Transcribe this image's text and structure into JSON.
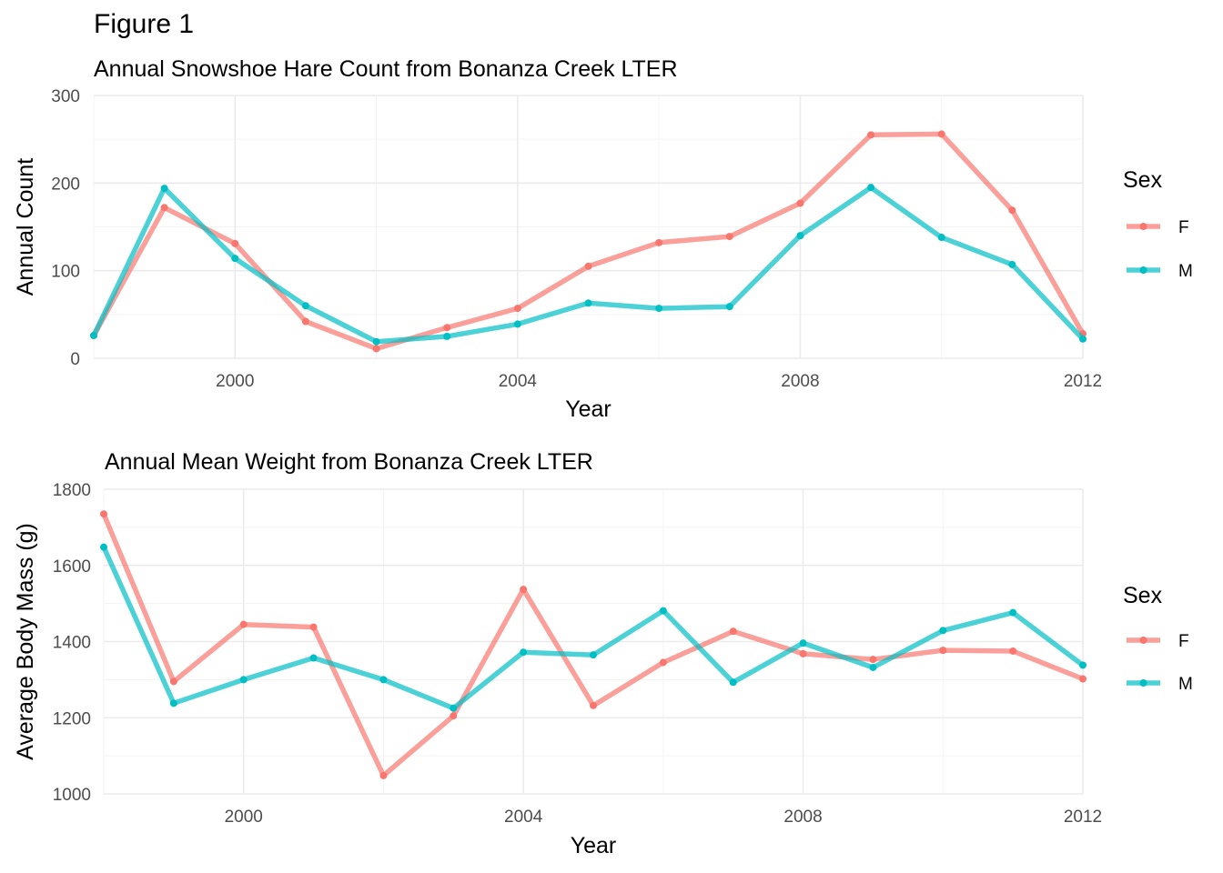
{
  "figure_title": "Figure 1",
  "colors": {
    "F": "#F8766D",
    "M": "#00BFC4"
  },
  "chart_data": [
    {
      "type": "line",
      "title": "Annual Snowshoe Hare Count from Bonanza Creek LTER",
      "xlabel": "Year",
      "ylabel": "Annual Count",
      "xlim": [
        1998,
        2012
      ],
      "ylim": [
        0,
        300
      ],
      "x_ticks": [
        2000,
        2004,
        2008,
        2012
      ],
      "y_ticks": [
        0,
        100,
        200,
        300
      ],
      "grid": true,
      "legend": {
        "title": "Sex",
        "position": "right",
        "entries": [
          "F",
          "M"
        ]
      },
      "x": [
        1998,
        1999,
        2000,
        2001,
        2002,
        2003,
        2004,
        2005,
        2006,
        2007,
        2008,
        2009,
        2010,
        2011,
        2012
      ],
      "series": [
        {
          "name": "F",
          "values": [
            26,
            172,
            131,
            42,
            11,
            35,
            57,
            105,
            132,
            139,
            177,
            255,
            256,
            169,
            28
          ]
        },
        {
          "name": "M",
          "values": [
            26,
            194,
            114,
            60,
            19,
            25,
            39,
            63,
            57,
            59,
            140,
            195,
            138,
            107,
            22
          ]
        }
      ]
    },
    {
      "type": "line",
      "title": "Annual Mean Weight from Bonanza Creek LTER",
      "xlabel": "Year",
      "ylabel": "Average Body Mass (g)",
      "xlim": [
        1998,
        2012
      ],
      "ylim": [
        1000,
        1800
      ],
      "x_ticks": [
        2000,
        2004,
        2008,
        2012
      ],
      "y_ticks": [
        1000,
        1200,
        1400,
        1600,
        1800
      ],
      "grid": true,
      "legend": {
        "title": "Sex",
        "position": "right",
        "entries": [
          "F",
          "M"
        ]
      },
      "x": [
        1998,
        1999,
        2000,
        2001,
        2002,
        2003,
        2004,
        2005,
        2006,
        2007,
        2008,
        2009,
        2010,
        2011,
        2012
      ],
      "series": [
        {
          "name": "F",
          "values": [
            1735,
            1295,
            1445,
            1438,
            1048,
            1205,
            1537,
            1232,
            1345,
            1427,
            1368,
            1353,
            1377,
            1375,
            1302
          ]
        },
        {
          "name": "M",
          "values": [
            1648,
            1238,
            1300,
            1357,
            1300,
            1225,
            1372,
            1365,
            1481,
            1293,
            1396,
            1332,
            1429,
            1476,
            1338
          ]
        }
      ]
    }
  ]
}
